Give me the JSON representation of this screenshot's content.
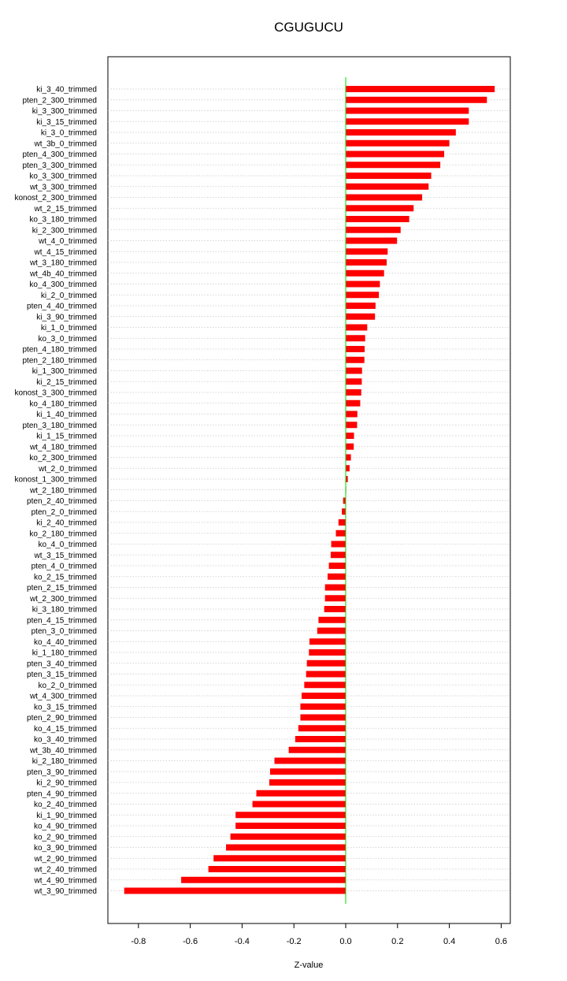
{
  "chart_data": {
    "type": "bar",
    "orientation": "horizontal",
    "title": "CGUGUCU",
    "xlabel": "Z-value",
    "ylabel": "",
    "xlim": [
      -0.9,
      0.63
    ],
    "xticks": [
      -0.8,
      -0.6,
      -0.4,
      -0.2,
      0.0,
      0.2,
      0.4,
      0.6
    ],
    "xtick_labels": [
      "-0.8",
      "-0.6",
      "-0.4",
      "-0.2",
      "0.0",
      "0.2",
      "0.4",
      "0.6"
    ],
    "grid": "horizontal dotted",
    "bar_color": "#ff0000",
    "zero_line_color": "#00dd00",
    "categories": [
      "ki_3_40_trimmed",
      "pten_2_300_trimmed",
      "ki_3_300_trimmed",
      "ki_3_15_trimmed",
      "ki_3_0_trimmed",
      "wt_3b_0_trimmed",
      "pten_4_300_trimmed",
      "pten_3_300_trimmed",
      "ko_3_300_trimmed",
      "wt_3_300_trimmed",
      "konost_2_300_trimmed",
      "wt_2_15_trimmed",
      "ko_3_180_trimmed",
      "ki_2_300_trimmed",
      "wt_4_0_trimmed",
      "wt_4_15_trimmed",
      "wt_3_180_trimmed",
      "wt_4b_40_trimmed",
      "ko_4_300_trimmed",
      "ki_2_0_trimmed",
      "pten_4_40_trimmed",
      "ki_3_90_trimmed",
      "ki_1_0_trimmed",
      "ko_3_0_trimmed",
      "pten_4_180_trimmed",
      "pten_2_180_trimmed",
      "ki_1_300_trimmed",
      "ki_2_15_trimmed",
      "konost_3_300_trimmed",
      "ko_4_180_trimmed",
      "ki_1_40_trimmed",
      "pten_3_180_trimmed",
      "ki_1_15_trimmed",
      "wt_4_180_trimmed",
      "ko_2_300_trimmed",
      "wt_2_0_trimmed",
      "konost_1_300_trimmed",
      "wt_2_180_trimmed",
      "pten_2_40_trimmed",
      "pten_2_0_trimmed",
      "ki_2_40_trimmed",
      "ko_2_180_trimmed",
      "ko_4_0_trimmed",
      "wt_3_15_trimmed",
      "pten_4_0_trimmed",
      "ko_2_15_trimmed",
      "pten_2_15_trimmed",
      "wt_2_300_trimmed",
      "ki_3_180_trimmed",
      "pten_4_15_trimmed",
      "pten_3_0_trimmed",
      "ko_4_40_trimmed",
      "ki_1_180_trimmed",
      "pten_3_40_trimmed",
      "pten_3_15_trimmed",
      "ko_2_0_trimmed",
      "wt_4_300_trimmed",
      "ko_3_15_trimmed",
      "pten_2_90_trimmed",
      "ko_4_15_trimmed",
      "ko_3_40_trimmed",
      "wt_3b_40_trimmed",
      "ki_2_180_trimmed",
      "pten_3_90_trimmed",
      "ki_2_90_trimmed",
      "pten_4_90_trimmed",
      "ko_2_40_trimmed",
      "ki_1_90_trimmed",
      "ko_4_90_trimmed",
      "ko_2_90_trimmed",
      "ko_3_90_trimmed",
      "wt_2_90_trimmed",
      "wt_2_40_trimmed",
      "wt_4_90_trimmed",
      "wt_3_90_trimmed"
    ],
    "values": [
      0.575,
      0.545,
      0.475,
      0.475,
      0.425,
      0.4,
      0.38,
      0.365,
      0.33,
      0.32,
      0.295,
      0.262,
      0.245,
      0.212,
      0.198,
      0.162,
      0.158,
      0.148,
      0.132,
      0.128,
      0.115,
      0.113,
      0.083,
      0.075,
      0.073,
      0.072,
      0.063,
      0.062,
      0.06,
      0.056,
      0.045,
      0.044,
      0.032,
      0.031,
      0.02,
      0.015,
      0.008,
      0.002,
      -0.01,
      -0.015,
      -0.028,
      -0.038,
      -0.056,
      -0.058,
      -0.065,
      -0.07,
      -0.08,
      -0.08,
      -0.083,
      -0.105,
      -0.11,
      -0.14,
      -0.142,
      -0.15,
      -0.153,
      -0.16,
      -0.17,
      -0.175,
      -0.175,
      -0.183,
      -0.195,
      -0.22,
      -0.275,
      -0.292,
      -0.295,
      -0.345,
      -0.36,
      -0.425,
      -0.425,
      -0.445,
      -0.462,
      -0.51,
      -0.53,
      -0.635,
      -0.855
    ]
  }
}
